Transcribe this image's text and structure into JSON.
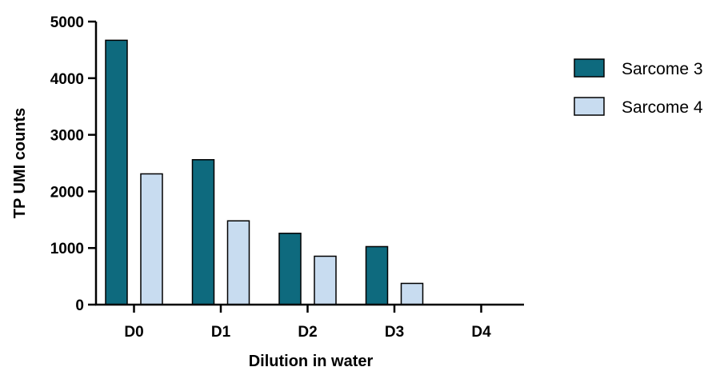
{
  "chart_data": {
    "type": "bar",
    "title": "",
    "xlabel": "Dilution in water",
    "ylabel": "TP UMI counts",
    "categories": [
      "D0",
      "D1",
      "D2",
      "D3",
      "D4"
    ],
    "series": [
      {
        "name": "Sarcome 3",
        "color": "#0e6a7e",
        "values": [
          4670,
          2560,
          1260,
          1025,
          0
        ]
      },
      {
        "name": "Sarcome 4",
        "color": "#c8dcf0",
        "values": [
          2310,
          1480,
          855,
          375,
          0
        ]
      }
    ],
    "ylim": [
      0,
      5000
    ],
    "yticks": [
      0,
      1000,
      2000,
      3000,
      4000,
      5000
    ],
    "grid": false,
    "legend_position": "right"
  }
}
